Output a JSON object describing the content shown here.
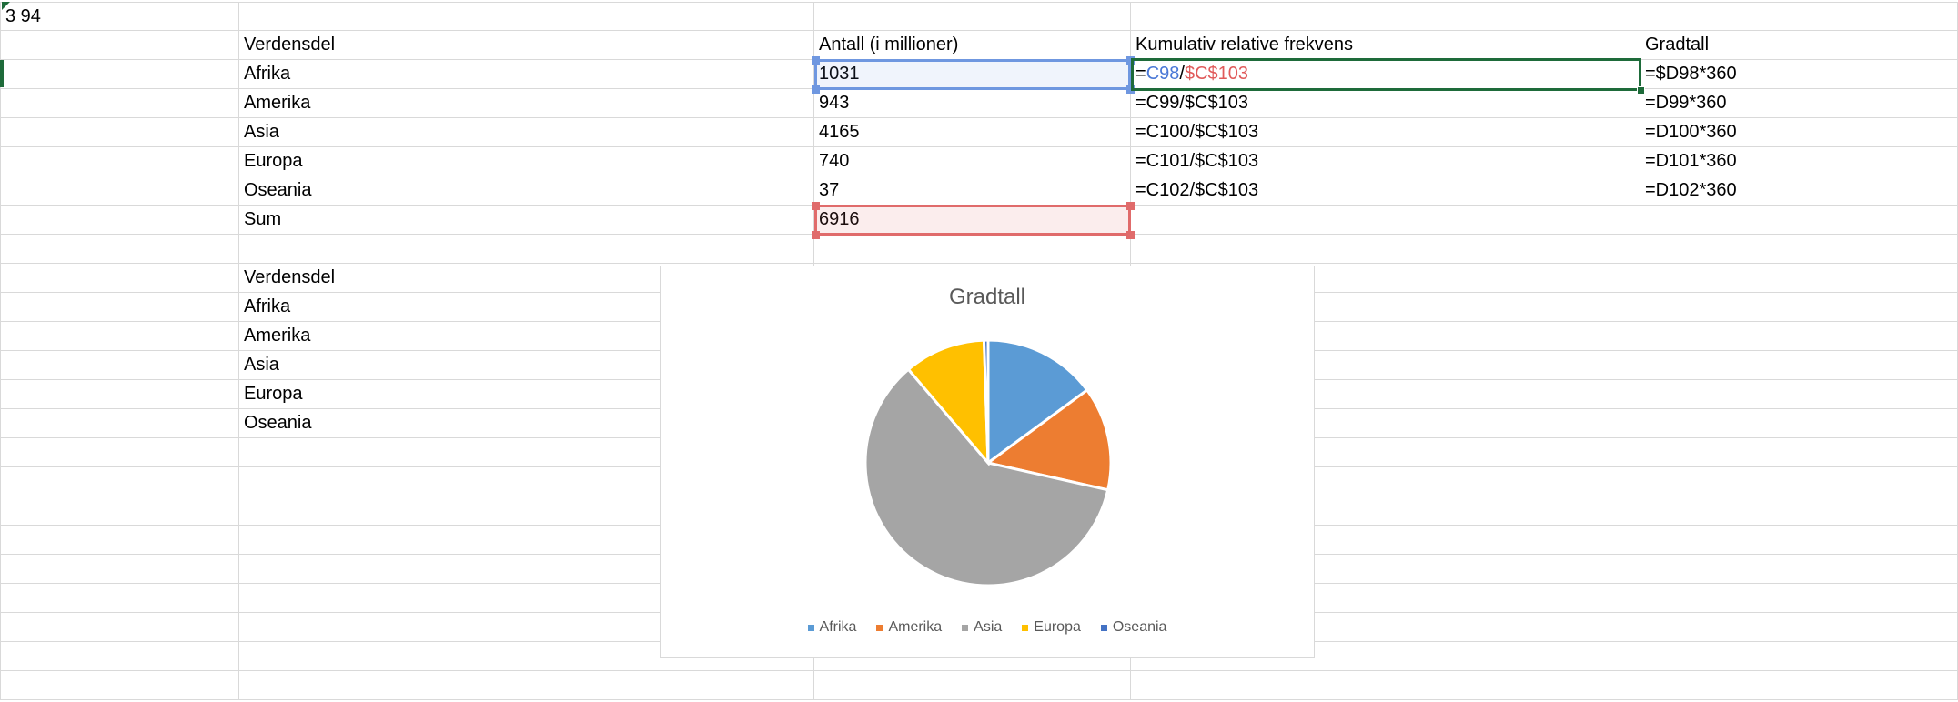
{
  "sheet": {
    "rows": [
      [
        "3 94",
        "",
        "",
        "",
        ""
      ],
      [
        "",
        "Verdensdel",
        "Antall (i millioner)",
        "Kumulativ relative frekvens",
        "Gradtall"
      ],
      [
        "",
        "Afrika",
        "1031",
        "",
        "=$D98*360"
      ],
      [
        "",
        "Amerika",
        "943",
        "=C99/$C$103",
        "=D99*360"
      ],
      [
        "",
        "Asia",
        "4165",
        "=C100/$C$103",
        "=D100*360"
      ],
      [
        "",
        "Europa",
        "740",
        "=C101/$C$103",
        "=D101*360"
      ],
      [
        "",
        "Oseania",
        "37",
        "=C102/$C$103",
        "=D102*360"
      ],
      [
        "",
        "Sum",
        "6916",
        "",
        ""
      ],
      [
        "",
        "",
        "",
        "",
        ""
      ],
      [
        "",
        "Verdensdel",
        "",
        "",
        ""
      ],
      [
        "",
        "Afrika",
        "",
        "",
        ""
      ],
      [
        "",
        "Amerika",
        "",
        "",
        ""
      ],
      [
        "",
        "Asia",
        "",
        "",
        ""
      ],
      [
        "",
        "Europa",
        "",
        "",
        ""
      ],
      [
        "",
        "Oseania",
        "",
        "",
        ""
      ],
      [
        "",
        "",
        "",
        "",
        ""
      ],
      [
        "",
        "",
        "",
        "",
        ""
      ],
      [
        "",
        "",
        "",
        "",
        ""
      ],
      [
        "",
        "",
        "",
        "",
        ""
      ],
      [
        "",
        "",
        "",
        "",
        ""
      ],
      [
        "",
        "",
        "",
        "",
        ""
      ],
      [
        "",
        "",
        "",
        "",
        ""
      ],
      [
        "",
        "",
        "",
        "",
        ""
      ],
      [
        "",
        "",
        "",
        "",
        ""
      ]
    ],
    "active_formula": {
      "eq": "=",
      "ref1": "C98",
      "slash": "/",
      "ref2": "$C$103"
    }
  },
  "colors": {
    "selection_active": "#1e6b3a",
    "ref_blue": "#4a78d6",
    "ref_red": "#e05a5a"
  },
  "chart_data": {
    "type": "pie",
    "title": "Gradtall",
    "categories": [
      "Afrika",
      "Amerika",
      "Asia",
      "Europa",
      "Oseania"
    ],
    "values": [
      1031,
      943,
      4165,
      740,
      37
    ],
    "colors": [
      "#5b9bd5",
      "#ed7d31",
      "#a5a5a5",
      "#ffc000",
      "#4472c4"
    ],
    "legend_position": "bottom"
  }
}
